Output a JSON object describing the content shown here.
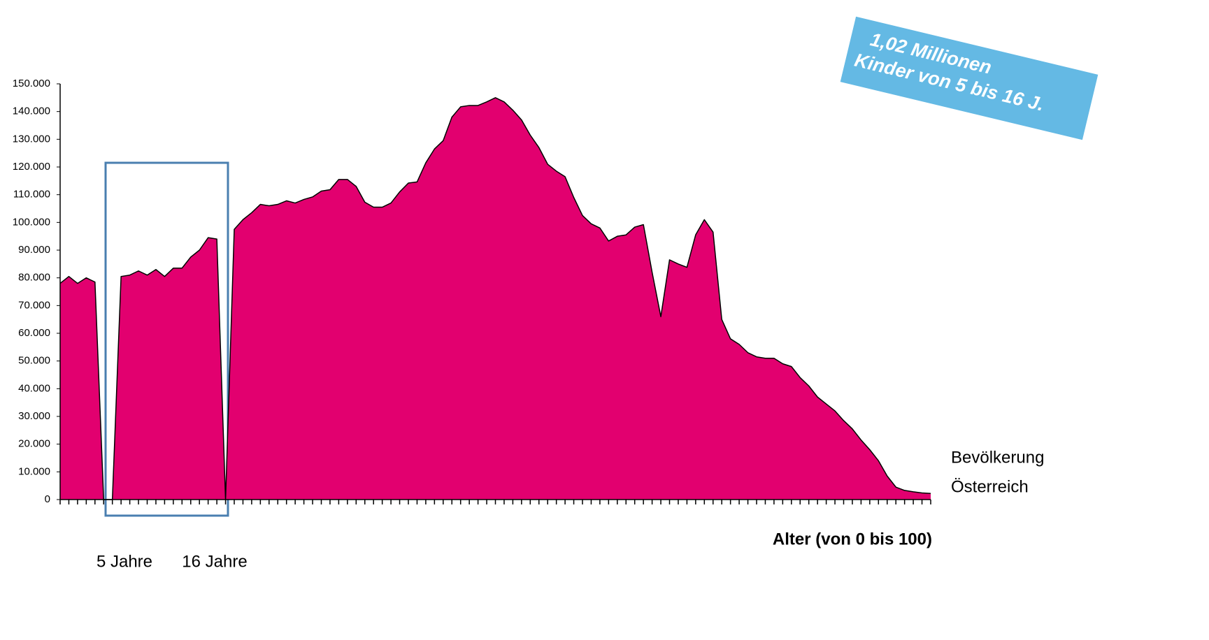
{
  "chart_data": {
    "type": "area",
    "x": [
      0,
      1,
      2,
      3,
      4,
      5,
      6,
      7,
      8,
      9,
      10,
      11,
      12,
      13,
      14,
      15,
      16,
      17,
      18,
      19,
      20,
      21,
      22,
      23,
      24,
      25,
      26,
      27,
      28,
      29,
      30,
      31,
      32,
      33,
      34,
      35,
      36,
      37,
      38,
      39,
      40,
      41,
      42,
      43,
      44,
      45,
      46,
      47,
      48,
      49,
      50,
      51,
      52,
      53,
      54,
      55,
      56,
      57,
      58,
      59,
      60,
      61,
      62,
      63,
      64,
      65,
      66,
      67,
      68,
      69,
      70,
      71,
      72,
      73,
      74,
      75,
      76,
      77,
      78,
      79,
      80,
      81,
      82,
      83,
      84,
      85,
      86,
      87,
      88,
      89,
      90,
      91,
      92,
      93,
      94,
      95,
      96,
      97,
      98,
      99,
      100
    ],
    "values": [
      78000,
      80500,
      78000,
      80000,
      78500,
      0,
      0,
      80500,
      81000,
      82500,
      81000,
      83000,
      80500,
      83500,
      83500,
      87500,
      90000,
      94500,
      94000,
      0,
      97500,
      101000,
      103500,
      106500,
      106000,
      106500,
      107800,
      107000,
      108300,
      109200,
      111300,
      111800,
      115500,
      115500,
      113000,
      107300,
      105500,
      105500,
      107000,
      111000,
      114200,
      114600,
      121500,
      126500,
      129500,
      138000,
      141700,
      142200,
      142200,
      143500,
      145000,
      143500,
      140500,
      137000,
      131500,
      127000,
      121000,
      118500,
      116500,
      109000,
      102500,
      99500,
      98000,
      93300,
      95000,
      95500,
      98300,
      99200,
      82000,
      66000,
      86500,
      85000,
      83800,
      95500,
      101000,
      96500,
      65000,
      58000,
      56000,
      53000,
      51500,
      51000,
      51000,
      49000,
      48000,
      44000,
      41000,
      37000,
      34500,
      32000,
      28500,
      25500,
      21500,
      18000,
      14000,
      8500,
      4500,
      3300,
      2800,
      2400,
      2200
    ],
    "color": "#e2006f",
    "xlim": [
      0,
      100
    ],
    "ylim": [
      0,
      150000
    ],
    "yticks": [
      {
        "value": 0,
        "label": "0"
      },
      {
        "value": 10000,
        "label": "10.000"
      },
      {
        "value": 20000,
        "label": "20.000"
      },
      {
        "value": 30000,
        "label": "30.000"
      },
      {
        "value": 40000,
        "label": "40.000"
      },
      {
        "value": 50000,
        "label": "50.000"
      },
      {
        "value": 60000,
        "label": "60.000"
      },
      {
        "value": 70000,
        "label": "70.000"
      },
      {
        "value": 80000,
        "label": "80.000"
      },
      {
        "value": 90000,
        "label": "90.000"
      },
      {
        "value": 100000,
        "label": "100.000"
      },
      {
        "value": 110000,
        "label": "110.000"
      },
      {
        "value": 120000,
        "label": "120.000"
      },
      {
        "value": 130000,
        "label": "130.000"
      },
      {
        "value": 140000,
        "label": "140.000"
      },
      {
        "value": 150000,
        "label": "150.000"
      }
    ],
    "xlabel": "Alter (von 0 bis 100)",
    "legend": [
      "Bevölkerung",
      "Österreich"
    ],
    "annotations": {
      "box_labels": [
        "5 Jahre",
        "16 Jahre"
      ],
      "banner": [
        "1,02 Millionen",
        "Kinder von 5 bis 16 J."
      ]
    }
  }
}
